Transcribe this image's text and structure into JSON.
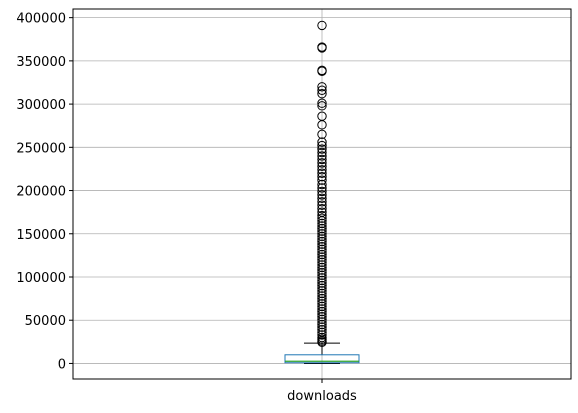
{
  "chart_data": {
    "type": "boxplot",
    "title": "",
    "xlabel": "",
    "ylabel": "",
    "categories": [
      "downloads"
    ],
    "grid": true,
    "ylim": [
      -18000,
      410000
    ],
    "yticks": [
      0,
      50000,
      100000,
      150000,
      200000,
      250000,
      300000,
      350000,
      400000
    ],
    "ytick_labels": [
      "0",
      "50000",
      "100000",
      "150000",
      "200000",
      "250000",
      "300000",
      "350000",
      "400000"
    ],
    "series": [
      {
        "name": "downloads",
        "whisker_low": 0,
        "q1": 800,
        "median": 2500,
        "q3": 10000,
        "whisker_high": 23500,
        "outliers": [
          391000,
          366000,
          365000,
          339000,
          338000,
          320000,
          316000,
          312000,
          301000,
          298000,
          286000,
          276000,
          265000,
          256000,
          252000,
          248000,
          244000,
          240000,
          236000,
          232000,
          228000,
          224000,
          220000,
          216000,
          212000,
          207000,
          203000,
          199000,
          195000,
          191000,
          187000,
          183000,
          179000,
          175000,
          171000,
          168000,
          165000,
          162000,
          159000,
          156000,
          153000,
          150000,
          147000,
          144000,
          141000,
          138000,
          135000,
          132000,
          129000,
          126000,
          123000,
          120000,
          117000,
          114000,
          111000,
          108000,
          105000,
          102000,
          99000,
          96000,
          93000,
          90000,
          87000,
          84000,
          81000,
          78000,
          75000,
          72000,
          69000,
          66000,
          63000,
          60000,
          57000,
          54000,
          51000,
          48000,
          45000,
          42000,
          39000,
          36000,
          33000,
          30000,
          28000,
          26000,
          24500
        ]
      }
    ],
    "colors": {
      "box": "#1f77b4",
      "median": "#2ca02c",
      "whisker": "#000000",
      "outlier": "#000000",
      "grid": "#b0b0b0",
      "axes": "#000000"
    }
  }
}
